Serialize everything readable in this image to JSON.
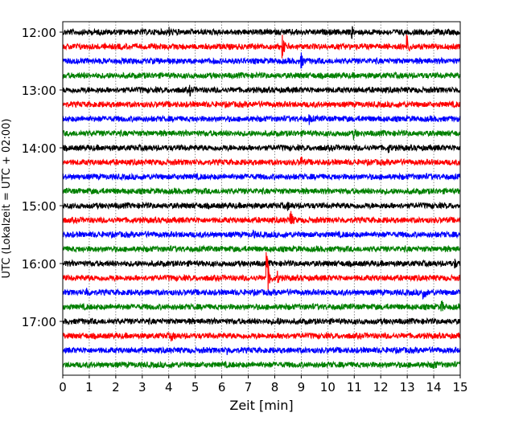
{
  "chart_data": {
    "type": "line",
    "subtype": "helicorder",
    "xlabel": "Zeit  [min]",
    "ylabel": "UTC (Lokalzeit = UTC + 02:00)",
    "xlim": [
      0,
      15
    ],
    "xticks": [
      "0",
      "1",
      "2",
      "3",
      "4",
      "5",
      "6",
      "7",
      "8",
      "9",
      "10",
      "11",
      "12",
      "13",
      "14",
      "15"
    ],
    "yticks": [
      "12:00",
      "13:00",
      "14:00",
      "15:00",
      "16:00",
      "17:00"
    ],
    "row_interval_min": 15,
    "grid": "vertical dotted",
    "colors": [
      "#000000",
      "#ff0000",
      "#0000ff",
      "#008000"
    ],
    "rows": [
      "12:00",
      "12:15",
      "12:30",
      "12:45",
      "13:00",
      "13:15",
      "13:30",
      "13:45",
      "14:00",
      "14:15",
      "14:30",
      "14:45",
      "15:00",
      "15:15",
      "15:30",
      "15:45",
      "16:00",
      "16:15",
      "16:30",
      "16:45",
      "17:00",
      "17:15",
      "17:30",
      "17:45"
    ],
    "noise_level": 1,
    "events": [
      {
        "row": 0,
        "minute": 4.0,
        "amplitude": 2.5
      },
      {
        "row": 0,
        "minute": 10.9,
        "amplitude": 3
      },
      {
        "row": 1,
        "minute": 8.3,
        "amplitude": 5
      },
      {
        "row": 1,
        "minute": 13.0,
        "amplitude": 5
      },
      {
        "row": 2,
        "minute": 9.0,
        "amplitude": 3.5
      },
      {
        "row": 4,
        "minute": 4.8,
        "amplitude": 2.5
      },
      {
        "row": 6,
        "minute": 9.3,
        "amplitude": 2.5
      },
      {
        "row": 7,
        "minute": 11.0,
        "amplitude": 2.5
      },
      {
        "row": 8,
        "minute": 12.3,
        "amplitude": 2.2
      },
      {
        "row": 9,
        "minute": 9.0,
        "amplitude": 2.8
      },
      {
        "row": 12,
        "minute": 8.5,
        "amplitude": 2.2
      },
      {
        "row": 13,
        "minute": 8.6,
        "amplitude": 4.5
      },
      {
        "row": 14,
        "minute": 7.2,
        "amplitude": 2
      },
      {
        "row": 16,
        "minute": 14.8,
        "amplitude": 2.2
      },
      {
        "row": 17,
        "minute": 7.7,
        "amplitude": 14
      },
      {
        "row": 17,
        "minute": 8.1,
        "amplitude": 3
      },
      {
        "row": 18,
        "minute": 0.9,
        "amplitude": 2.5
      },
      {
        "row": 18,
        "minute": 13.6,
        "amplitude": 4
      },
      {
        "row": 19,
        "minute": 14.3,
        "amplitude": 3
      },
      {
        "row": 20,
        "minute": 8.1,
        "amplitude": 2
      },
      {
        "row": 21,
        "minute": 8.3,
        "amplitude": 2.5
      },
      {
        "row": 21,
        "minute": 4.1,
        "amplitude": 2.2
      },
      {
        "row": 22,
        "minute": 6.2,
        "amplitude": 2.2
      },
      {
        "row": 23,
        "minute": 14.0,
        "amplitude": 2.5
      }
    ]
  }
}
